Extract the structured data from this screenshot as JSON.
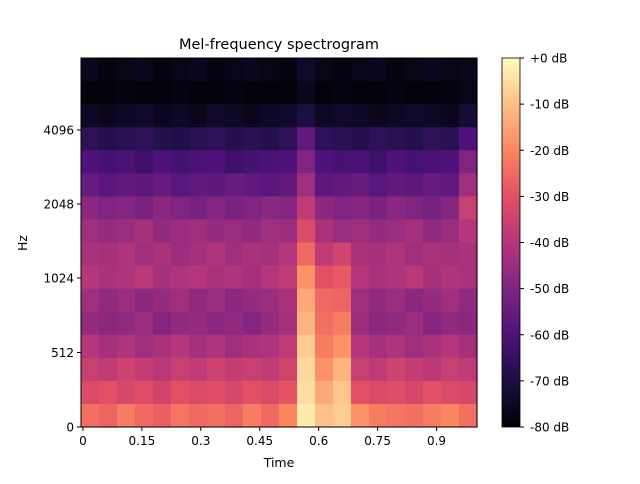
{
  "chart_data": {
    "type": "heatmap",
    "title": "Mel-frequency spectrogram",
    "xlabel": "Time",
    "ylabel": "Hz",
    "xlim": [
      -0.005,
      1.003
    ],
    "x_ticks": [
      0,
      0.15,
      0.3,
      0.45,
      0.6,
      0.75,
      0.9
    ],
    "x_tick_labels": [
      "0",
      "0.15",
      "0.3",
      "0.45",
      "0.6",
      "0.75",
      "0.9"
    ],
    "y_ticks": [
      0,
      512,
      1024,
      2048,
      4096
    ],
    "y_tick_labels": [
      "0",
      "512",
      "1024",
      "2048",
      "4096"
    ],
    "ylim": [
      0,
      8000
    ],
    "y_scale": "mel (linear below 1024 Hz, log2 above)",
    "colormap": "magma",
    "colorbar": {
      "range": [
        -80,
        0
      ],
      "ticks": [
        0,
        -10,
        -20,
        -30,
        -40,
        -50,
        -60,
        -70,
        -80
      ],
      "tick_labels": [
        "+0 dB",
        "-10 dB",
        "-20 dB",
        "-30 dB",
        "-40 dB",
        "-50 dB",
        "-60 dB",
        "-70 dB",
        "-80 dB"
      ],
      "placement": "right"
    },
    "grid_note": "rows ordered from highest frequency (top) to lowest (bottom); 22 time columns spanning 0-1.0 s; values in dB",
    "values": [
      [
        -76,
        -78,
        -77,
        -76,
        -78,
        -77,
        -76,
        -78,
        -77,
        -76,
        -77,
        -78,
        -74,
        -77,
        -78,
        -77,
        -76,
        -78,
        -77,
        -76,
        -77,
        -76
      ],
      [
        -79,
        -79,
        -78,
        -79,
        -79,
        -78,
        -79,
        -79,
        -78,
        -79,
        -79,
        -79,
        -76,
        -79,
        -78,
        -79,
        -79,
        -78,
        -79,
        -79,
        -78,
        -77
      ],
      [
        -75,
        -76,
        -75,
        -74,
        -76,
        -75,
        -76,
        -74,
        -75,
        -76,
        -75,
        -74,
        -70,
        -75,
        -74,
        -75,
        -76,
        -75,
        -74,
        -75,
        -76,
        -72
      ],
      [
        -66,
        -68,
        -67,
        -66,
        -68,
        -69,
        -67,
        -66,
        -68,
        -67,
        -68,
        -66,
        -56,
        -66,
        -67,
        -68,
        -66,
        -67,
        -68,
        -66,
        -67,
        -60
      ],
      [
        -60,
        -62,
        -61,
        -63,
        -60,
        -62,
        -61,
        -60,
        -63,
        -62,
        -61,
        -60,
        -50,
        -60,
        -62,
        -61,
        -63,
        -60,
        -62,
        -61,
        -60,
        -50
      ],
      [
        -55,
        -58,
        -56,
        -57,
        -55,
        -58,
        -56,
        -57,
        -55,
        -56,
        -58,
        -56,
        -44,
        -57,
        -56,
        -55,
        -58,
        -56,
        -57,
        -55,
        -56,
        -44
      ],
      [
        -48,
        -50,
        -49,
        -51,
        -48,
        -50,
        -52,
        -49,
        -51,
        -50,
        -48,
        -49,
        -38,
        -48,
        -50,
        -49,
        -51,
        -48,
        -50,
        -52,
        -49,
        -36
      ],
      [
        -44,
        -46,
        -45,
        -43,
        -47,
        -45,
        -44,
        -46,
        -45,
        -47,
        -44,
        -45,
        -32,
        -42,
        -45,
        -44,
        -46,
        -45,
        -43,
        -47,
        -45,
        -40
      ],
      [
        -42,
        -43,
        -41,
        -44,
        -42,
        -45,
        -43,
        -41,
        -44,
        -42,
        -43,
        -40,
        -25,
        -38,
        -34,
        -42,
        -43,
        -41,
        -44,
        -42,
        -43,
        -42
      ],
      [
        -40,
        -42,
        -41,
        -39,
        -43,
        -41,
        -40,
        -42,
        -41,
        -43,
        -40,
        -38,
        -18,
        -30,
        -28,
        -40,
        -42,
        -41,
        -39,
        -43,
        -41,
        -42
      ],
      [
        -44,
        -47,
        -45,
        -48,
        -46,
        -44,
        -47,
        -45,
        -48,
        -46,
        -45,
        -42,
        -14,
        -25,
        -26,
        -44,
        -47,
        -45,
        -48,
        -46,
        -44,
        -47
      ],
      [
        -46,
        -48,
        -47,
        -45,
        -49,
        -47,
        -46,
        -48,
        -47,
        -49,
        -46,
        -43,
        -12,
        -24,
        -22,
        -45,
        -48,
        -47,
        -45,
        -49,
        -47,
        -48
      ],
      [
        -40,
        -43,
        -41,
        -44,
        -42,
        -40,
        -43,
        -41,
        -44,
        -42,
        -41,
        -38,
        -8,
        -22,
        -18,
        -40,
        -43,
        -41,
        -44,
        -42,
        -40,
        -43
      ],
      [
        -36,
        -38,
        -35,
        -37,
        -39,
        -36,
        -38,
        -35,
        -37,
        -36,
        -38,
        -34,
        -6,
        -18,
        -12,
        -36,
        -38,
        -35,
        -37,
        -39,
        -36,
        -38
      ],
      [
        -32,
        -30,
        -33,
        -31,
        -34,
        -30,
        -32,
        -31,
        -33,
        -30,
        -32,
        -29,
        -5,
        -14,
        -9,
        -30,
        -32,
        -31,
        -33,
        -30,
        -32,
        -33
      ],
      [
        -24,
        -26,
        -22,
        -25,
        -27,
        -23,
        -25,
        -24,
        -26,
        -22,
        -25,
        -20,
        -3,
        -10,
        -8,
        -18,
        -22,
        -23,
        -24,
        -22,
        -20,
        -24
      ]
    ]
  }
}
